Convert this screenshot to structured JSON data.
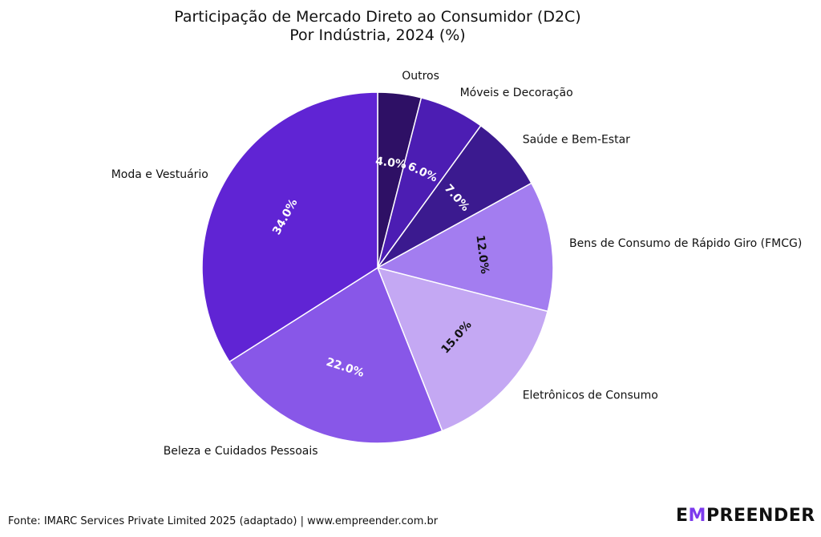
{
  "chart_data": {
    "type": "pie",
    "title_lines": [
      "Participação de Mercado Direto ao Consumidor (D2C)",
      "Por Indústria, 2024 (%)"
    ],
    "start_angle_deg": 90,
    "direction": "clockwise",
    "slices": [
      {
        "label": "Outros",
        "value": 4.0,
        "pct_label": "4.0%",
        "color": "#2e1065",
        "text_color": "#ffffff"
      },
      {
        "label": "Móveis e Decoração",
        "value": 6.0,
        "pct_label": "6.0%",
        "color": "#4c1db3",
        "text_color": "#ffffff"
      },
      {
        "label": "Saúde e Bem-Estar",
        "value": 7.0,
        "pct_label": "7.0%",
        "color": "#3b1a8f",
        "text_color": "#ffffff"
      },
      {
        "label": "Bens de Consumo de Rápido Giro (FMCG)",
        "value": 12.0,
        "pct_label": "12.0%",
        "color": "#a37df0",
        "text_color": "#111111"
      },
      {
        "label": "Eletrônicos de Consumo",
        "value": 15.0,
        "pct_label": "15.0%",
        "color": "#c4a8f3",
        "text_color": "#111111"
      },
      {
        "label": "Beleza e Cuidados Pessoais",
        "value": 22.0,
        "pct_label": "22.0%",
        "color": "#8857e8",
        "text_color": "#ffffff"
      },
      {
        "label": "Moda e Vestuário",
        "value": 34.0,
        "pct_label": "34.0%",
        "color": "#6024d4",
        "text_color": "#ffffff"
      }
    ]
  },
  "footer": {
    "source": "Fonte: IMARC Services Private Limited 2025 (adaptado) | www.empreender.com.br"
  },
  "brand": {
    "part1": "E",
    "accent": "M",
    "part2": "PREENDER",
    "accent_color": "#7c3aed"
  }
}
